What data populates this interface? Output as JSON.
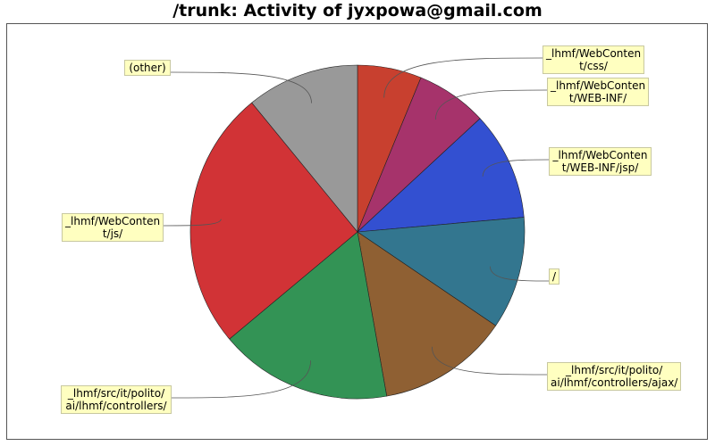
{
  "title": "/trunk: Activity of jyxpowa@gmail.com",
  "chart_data": {
    "type": "pie",
    "slices": [
      {
        "label": "_lhmf/WebConten\nt/css/",
        "value": 6.2,
        "color": "#c8402f"
      },
      {
        "label": "_lhmf/WebConten\nt/WEB-INF/",
        "value": 6.9,
        "color": "#a6336b"
      },
      {
        "label": "_lhmf/WebConten\nt/WEB-INF/jsp/",
        "value": 10.5,
        "color": "#3350d1"
      },
      {
        "label": "/",
        "value": 10.9,
        "color": "#33768f"
      },
      {
        "label": "_lhmf/src/it/polito/\nai/lhmf/controllers/ajax/",
        "value": 12.7,
        "color": "#8f6033"
      },
      {
        "label": "_lhmf/src/it/polito/\nai/lhmf/controllers/",
        "value": 16.7,
        "color": "#339355"
      },
      {
        "label": "_lhmf/WebConten\nt/js/",
        "value": 25.2,
        "color": "#d13336"
      },
      {
        "label": "(other)",
        "value": 10.9,
        "color": "#999999"
      }
    ]
  }
}
